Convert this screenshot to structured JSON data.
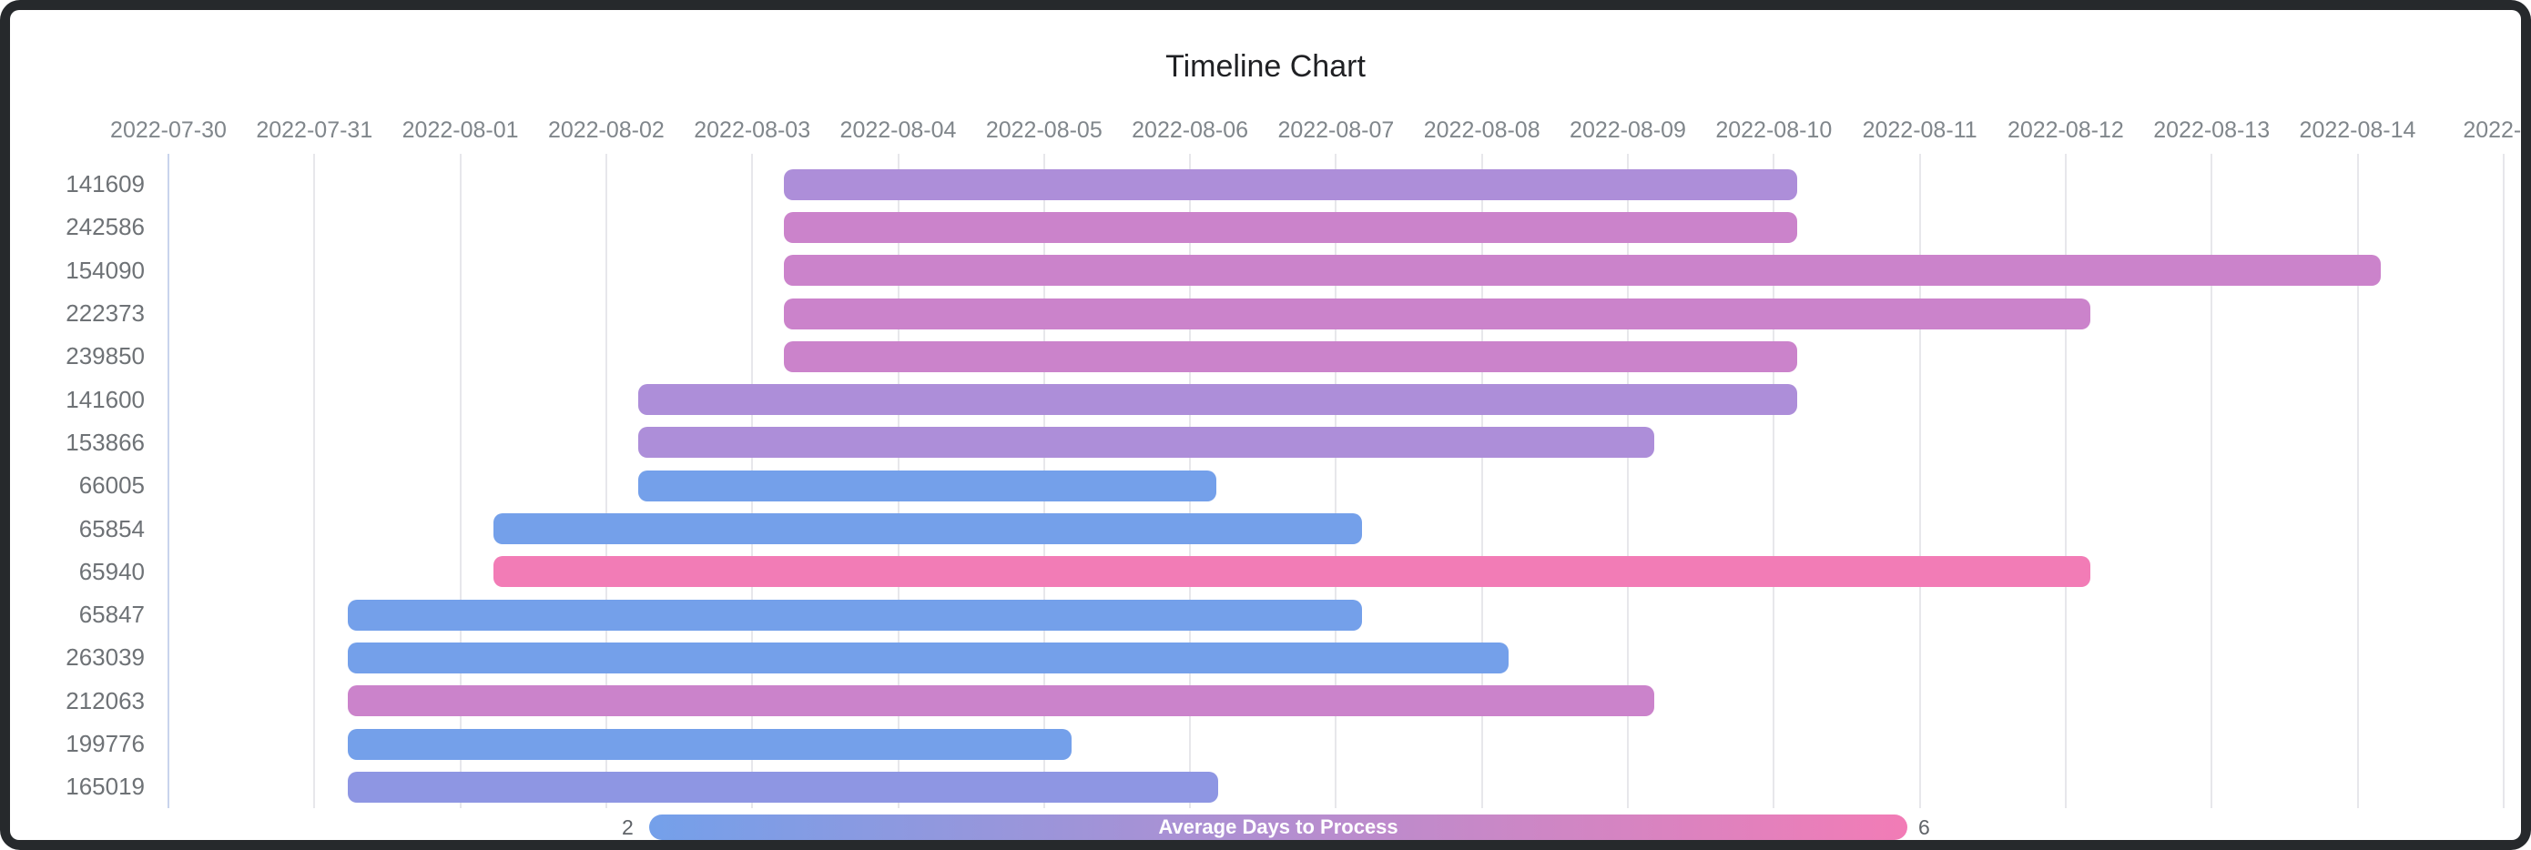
{
  "title": "Timeline Chart",
  "frame_color": "#26292c",
  "chart_data": {
    "type": "timeline",
    "title": "Timeline Chart",
    "x_axis": {
      "start_date": "2022-07-30",
      "tick_labels": [
        "2022-07-30",
        "2022-07-31",
        "2022-08-01",
        "2022-08-02",
        "2022-08-03",
        "2022-08-04",
        "2022-08-05",
        "2022-08-06",
        "2022-08-07",
        "2022-08-08",
        "2022-08-09",
        "2022-08-10",
        "2022-08-11",
        "2022-08-12",
        "2022-08-13",
        "2022-08-14",
        "2022-…"
      ],
      "grid": true
    },
    "palette": {
      "blue": "#74a0ea",
      "periwinkle": "#8e96e3",
      "purple": "#ad8ed9",
      "orchid": "#cb83cb",
      "pink": "#f27cb6"
    },
    "rows": [
      {
        "label": "141609",
        "start_date": "2022-08-03",
        "end_date": "2022-08-10",
        "start": 4.22,
        "end": 11.16,
        "color": "#ad8ed9",
        "color_name": "purple"
      },
      {
        "label": "242586",
        "start_date": "2022-08-03",
        "end_date": "2022-08-10",
        "start": 4.22,
        "end": 11.16,
        "color": "#cb83cb",
        "color_name": "orchid"
      },
      {
        "label": "154090",
        "start_date": "2022-08-03",
        "end_date": "2022-08-14",
        "start": 4.22,
        "end": 15.16,
        "color": "#cb83cb",
        "color_name": "orchid"
      },
      {
        "label": "222373",
        "start_date": "2022-08-03",
        "end_date": "2022-08-12",
        "start": 4.22,
        "end": 13.17,
        "color": "#cb83cb",
        "color_name": "orchid"
      },
      {
        "label": "239850",
        "start_date": "2022-08-03",
        "end_date": "2022-08-10",
        "start": 4.22,
        "end": 11.16,
        "color": "#cb83cb",
        "color_name": "orchid"
      },
      {
        "label": "141600",
        "start_date": "2022-08-02",
        "end_date": "2022-08-10",
        "start": 3.22,
        "end": 11.16,
        "color": "#ad8ed9",
        "color_name": "purple"
      },
      {
        "label": "153866",
        "start_date": "2022-08-02",
        "end_date": "2022-08-09",
        "start": 3.22,
        "end": 10.18,
        "color": "#ad8ed9",
        "color_name": "purple"
      },
      {
        "label": "66005",
        "start_date": "2022-08-02",
        "end_date": "2022-08-06",
        "start": 3.22,
        "end": 7.18,
        "color": "#74a0ea",
        "color_name": "blue"
      },
      {
        "label": "65854",
        "start_date": "2022-08-01",
        "end_date": "2022-08-07",
        "start": 2.23,
        "end": 8.18,
        "color": "#74a0ea",
        "color_name": "blue"
      },
      {
        "label": "65940",
        "start_date": "2022-08-01",
        "end_date": "2022-08-12",
        "start": 2.23,
        "end": 13.17,
        "color": "#f27cb6",
        "color_name": "pink"
      },
      {
        "label": "65847",
        "start_date": "2022-07-31",
        "end_date": "2022-08-07",
        "start": 1.23,
        "end": 8.18,
        "color": "#74a0ea",
        "color_name": "blue"
      },
      {
        "label": "263039",
        "start_date": "2022-07-31",
        "end_date": "2022-08-08",
        "start": 1.23,
        "end": 9.18,
        "color": "#74a0ea",
        "color_name": "blue"
      },
      {
        "label": "212063",
        "start_date": "2022-07-31",
        "end_date": "2022-08-09",
        "start": 1.23,
        "end": 10.18,
        "color": "#cb83cb",
        "color_name": "orchid"
      },
      {
        "label": "199776",
        "start_date": "2022-07-31",
        "end_date": "2022-08-05",
        "start": 1.23,
        "end": 6.19,
        "color": "#74a0ea",
        "color_name": "blue"
      },
      {
        "label": "165019",
        "start_date": "2022-07-31",
        "end_date": "2022-08-06",
        "start": 1.23,
        "end": 7.19,
        "color": "#8e96e3",
        "color_name": "periwinkle"
      }
    ],
    "legend": {
      "label": "Average Days to Process",
      "min_label": "2",
      "max_label": "6",
      "min_color": "#74a0ea",
      "max_color": "#f27cb6",
      "position": "bottom"
    }
  }
}
